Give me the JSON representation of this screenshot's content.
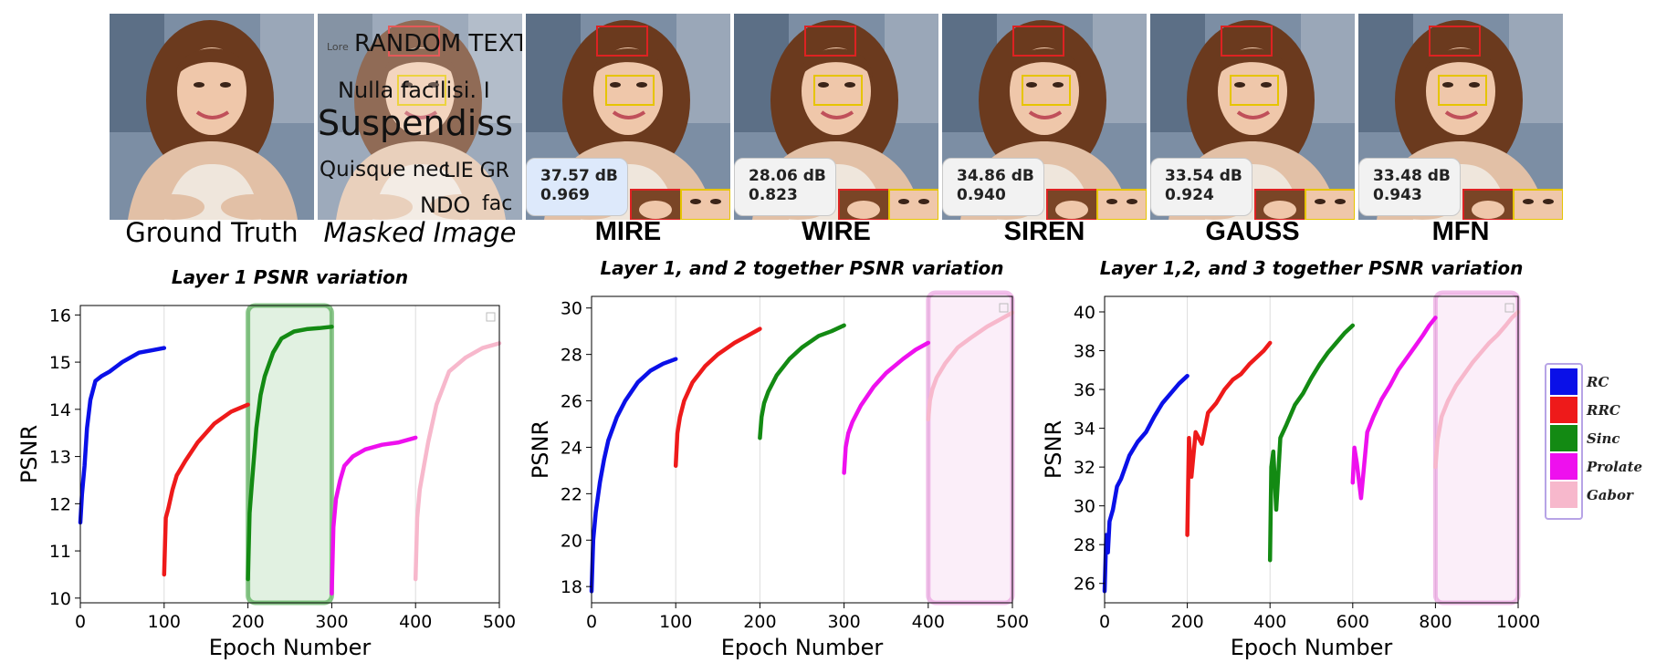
{
  "image_strip": {
    "tiles": [
      {
        "caption": "Ground Truth",
        "style": "plain"
      },
      {
        "caption": "Masked Image",
        "style": "italic",
        "mask_text": [
          "RANDOM TEXT",
          "Lore",
          "Nulla facilisi. I",
          "Suspendiss",
          "Quisque nec",
          "LIE GR",
          "NDO",
          "fac"
        ]
      },
      {
        "caption": "MIRE",
        "style": "bold",
        "psnr": "37.57 dB",
        "ssim": "0.969",
        "badge_bg": "#dde9fb"
      },
      {
        "caption": "WIRE",
        "style": "bold",
        "psnr": "28.06 dB",
        "ssim": "0.823",
        "badge_bg": "#f2f2f2"
      },
      {
        "caption": "SIREN",
        "style": "bold",
        "psnr": "34.86 dB",
        "ssim": "0.940",
        "badge_bg": "#f2f2f2"
      },
      {
        "caption": "GAUSS",
        "style": "bold",
        "psnr": "33.54 dB",
        "ssim": "0.924",
        "badge_bg": "#f2f2f2"
      },
      {
        "caption": "MFN",
        "style": "bold",
        "psnr": "33.48 dB",
        "ssim": "0.943",
        "badge_bg": "#f2f2f2"
      }
    ]
  },
  "colors": {
    "RC": "#0a10e8",
    "RRC": "#ee1a1a",
    "Sinc": "#138a13",
    "Prolate": "#ee10ee",
    "Gabor": "#f7b8cc",
    "highlight_green": "#2e9a2e",
    "highlight_pink": "#e58ad8"
  },
  "legend": {
    "entries": [
      "RC",
      "RRC",
      "Sinc",
      "Prolate",
      "Gabor"
    ]
  },
  "chart_data": [
    {
      "type": "line",
      "title": "Layer 1 PSNR variation",
      "xlabel": "Epoch Number",
      "ylabel": "PSNR",
      "xlim": [
        0,
        500
      ],
      "ylim": [
        9.9,
        16.2
      ],
      "xticks": [
        0,
        100,
        200,
        300,
        400,
        500
      ],
      "yticks": [
        10,
        11,
        12,
        13,
        14,
        15,
        16
      ],
      "highlight": {
        "from": 200,
        "to": 300,
        "color": "green"
      },
      "series": [
        {
          "name": "RC",
          "x": [
            0,
            2,
            5,
            8,
            12,
            18,
            25,
            35,
            50,
            70,
            85,
            100
          ],
          "y": [
            11.6,
            12.2,
            12.8,
            13.6,
            14.2,
            14.6,
            14.7,
            14.8,
            15.0,
            15.2,
            15.25,
            15.3
          ]
        },
        {
          "name": "RRC",
          "x": [
            100,
            102,
            105,
            110,
            115,
            125,
            140,
            160,
            180,
            200
          ],
          "y": [
            10.5,
            11.7,
            11.9,
            12.3,
            12.6,
            12.9,
            13.3,
            13.7,
            13.95,
            14.1
          ]
        },
        {
          "name": "Sinc",
          "x": [
            200,
            202,
            205,
            210,
            215,
            220,
            230,
            240,
            255,
            270,
            285,
            300
          ],
          "y": [
            10.4,
            11.8,
            12.5,
            13.6,
            14.3,
            14.7,
            15.2,
            15.5,
            15.65,
            15.7,
            15.72,
            15.75
          ]
        },
        {
          "name": "Prolate",
          "x": [
            300,
            302,
            305,
            310,
            315,
            325,
            340,
            360,
            380,
            400
          ],
          "y": [
            10.1,
            11.5,
            12.1,
            12.5,
            12.8,
            13.0,
            13.15,
            13.25,
            13.3,
            13.4
          ]
        },
        {
          "name": "Gabor",
          "x": [
            400,
            402,
            405,
            410,
            415,
            425,
            440,
            460,
            480,
            500
          ],
          "y": [
            10.4,
            11.7,
            12.3,
            12.8,
            13.3,
            14.1,
            14.8,
            15.1,
            15.3,
            15.4
          ]
        }
      ]
    },
    {
      "type": "line",
      "title": "Layer  1, and 2 together PSNR variation",
      "xlabel": "Epoch Number",
      "ylabel": "PSNR",
      "xlim": [
        0,
        500
      ],
      "ylim": [
        17.3,
        30.5
      ],
      "xticks": [
        0,
        100,
        200,
        300,
        400,
        500
      ],
      "yticks": [
        18,
        20,
        22,
        24,
        26,
        28,
        30
      ],
      "highlight": {
        "from": 400,
        "to": 500,
        "color": "pink"
      },
      "series": [
        {
          "name": "RC",
          "x": [
            0,
            2,
            5,
            10,
            15,
            20,
            30,
            40,
            55,
            70,
            85,
            100
          ],
          "y": [
            17.8,
            20.0,
            21.2,
            22.5,
            23.5,
            24.3,
            25.3,
            26.0,
            26.8,
            27.3,
            27.6,
            27.8
          ]
        },
        {
          "name": "RRC",
          "x": [
            100,
            102,
            105,
            110,
            120,
            135,
            150,
            170,
            185,
            200
          ],
          "y": [
            23.2,
            24.6,
            25.3,
            26.0,
            26.8,
            27.5,
            28.0,
            28.5,
            28.8,
            29.1
          ]
        },
        {
          "name": "Sinc",
          "x": [
            200,
            202,
            205,
            210,
            220,
            235,
            250,
            270,
            285,
            300
          ],
          "y": [
            24.4,
            25.3,
            25.9,
            26.4,
            27.1,
            27.8,
            28.3,
            28.8,
            29.0,
            29.25
          ]
        },
        {
          "name": "Prolate",
          "x": [
            300,
            302,
            305,
            310,
            320,
            335,
            350,
            370,
            385,
            400
          ],
          "y": [
            22.9,
            24.0,
            24.6,
            25.1,
            25.8,
            26.6,
            27.2,
            27.8,
            28.2,
            28.5
          ]
        },
        {
          "name": "Gabor",
          "x": [
            400,
            402,
            405,
            410,
            420,
            435,
            450,
            470,
            485,
            500
          ],
          "y": [
            25.2,
            26.0,
            26.5,
            27.0,
            27.6,
            28.3,
            28.7,
            29.2,
            29.5,
            29.8
          ]
        }
      ]
    },
    {
      "type": "line",
      "title": "Layer 1,2, and 3 together PSNR variation",
      "xlabel": "Epoch Number",
      "ylabel": "PSNR",
      "xlim": [
        0,
        1000
      ],
      "ylim": [
        25,
        40.8
      ],
      "xticks": [
        0,
        200,
        400,
        600,
        800,
        1000
      ],
      "yticks": [
        26,
        28,
        30,
        32,
        34,
        36,
        38,
        40
      ],
      "highlight": {
        "from": 800,
        "to": 1000,
        "color": "pink"
      },
      "series": [
        {
          "name": "RC",
          "x": [
            0,
            4,
            8,
            12,
            20,
            30,
            40,
            60,
            80,
            100,
            120,
            140,
            160,
            180,
            200
          ],
          "y": [
            25.6,
            28.5,
            27.6,
            29.2,
            29.8,
            31.0,
            31.4,
            32.6,
            33.3,
            33.8,
            34.6,
            35.3,
            35.8,
            36.3,
            36.7
          ]
        },
        {
          "name": "RRC",
          "x": [
            200,
            204,
            210,
            220,
            235,
            250,
            270,
            290,
            310,
            330,
            350,
            370,
            385,
            400
          ],
          "y": [
            28.5,
            33.5,
            31.5,
            33.8,
            33.2,
            34.8,
            35.3,
            36.0,
            36.5,
            36.8,
            37.3,
            37.7,
            38.0,
            38.4
          ]
        },
        {
          "name": "Sinc",
          "x": [
            400,
            403,
            408,
            415,
            425,
            440,
            460,
            480,
            500,
            520,
            540,
            560,
            580,
            600
          ],
          "y": [
            27.2,
            32.0,
            32.8,
            29.8,
            33.5,
            34.2,
            35.2,
            35.8,
            36.6,
            37.3,
            37.9,
            38.4,
            38.9,
            39.3
          ]
        },
        {
          "name": "Prolate",
          "x": [
            600,
            604,
            610,
            620,
            635,
            650,
            670,
            690,
            710,
            730,
            750,
            770,
            785,
            800
          ],
          "y": [
            31.2,
            33.0,
            32.2,
            30.4,
            33.8,
            34.6,
            35.5,
            36.2,
            37.0,
            37.6,
            38.2,
            38.8,
            39.3,
            39.7
          ]
        },
        {
          "name": "Gabor",
          "x": [
            800,
            805,
            815,
            830,
            850,
            870,
            890,
            910,
            930,
            950,
            970,
            985,
            1000
          ],
          "y": [
            32.0,
            33.4,
            34.6,
            35.4,
            36.2,
            36.8,
            37.4,
            37.9,
            38.4,
            38.8,
            39.3,
            39.7,
            40.0
          ]
        }
      ]
    }
  ]
}
